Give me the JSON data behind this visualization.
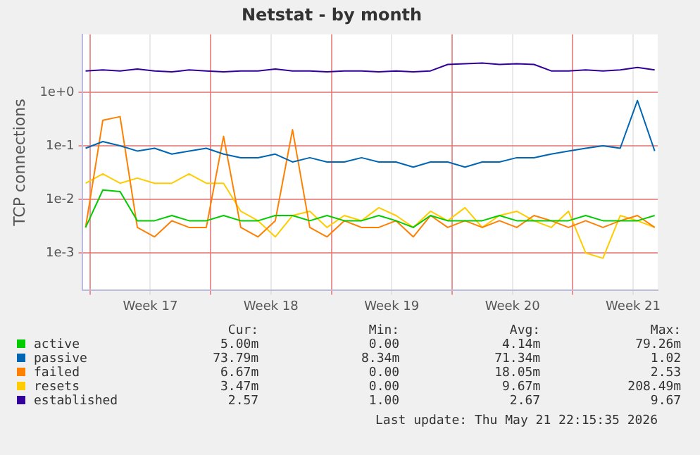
{
  "chart_data": {
    "type": "line",
    "title": "Netstat - by month",
    "ylabel": "TCP connections",
    "log": "y",
    "grid": true,
    "legend": "bottom",
    "marker": "none",
    "line_style": "solid",
    "x": [
      "2026-04-18T18:00",
      "2026-04-19T18:00",
      "2026-04-20T18:00",
      "2026-04-21T18:00",
      "2026-04-22T18:00",
      "2026-04-23T18:00",
      "2026-04-24T18:00",
      "2026-04-25T18:00",
      "2026-04-26T18:00",
      "2026-04-27T18:00",
      "2026-04-28T18:00",
      "2026-04-29T18:00",
      "2026-04-30T18:00",
      "2026-05-01T18:00",
      "2026-05-02T18:00",
      "2026-05-03T18:00",
      "2026-05-04T18:00",
      "2026-05-05T18:00",
      "2026-05-06T18:00",
      "2026-05-07T18:00",
      "2026-05-08T18:00",
      "2026-05-09T18:00",
      "2026-05-10T18:00",
      "2026-05-11T18:00",
      "2026-05-12T18:00",
      "2026-05-13T18:00",
      "2026-05-14T18:00",
      "2026-05-15T18:00",
      "2026-05-16T18:00",
      "2026-05-17T18:00",
      "2026-05-18T18:00",
      "2026-05-19T18:00",
      "2026-05-20T18:00",
      "2026-05-21T18:00"
    ],
    "xlim": [
      "2026-04-18T14:00",
      "2026-05-21T22:15"
    ],
    "xticks": [
      {
        "value": "2026-04-19T00:00",
        "label": null
      },
      {
        "value": "2026-04-22T12:00",
        "label": "Week 17"
      },
      {
        "value": "2026-04-26T00:00",
        "label": null
      },
      {
        "value": "2026-04-29T12:00",
        "label": "Week 18"
      },
      {
        "value": "2026-05-03T00:00",
        "label": null
      },
      {
        "value": "2026-05-06T12:00",
        "label": "Week 19"
      },
      {
        "value": "2026-05-10T00:00",
        "label": null
      },
      {
        "value": "2026-05-13T12:00",
        "label": "Week 20"
      },
      {
        "value": "2026-05-17T00:00",
        "label": null
      },
      {
        "value": "2026-05-20T12:00",
        "label": "Week 21"
      }
    ],
    "ylim": [
      0.0002,
      12
    ],
    "yticks": [
      {
        "value": 0.001,
        "label": "1e-3"
      },
      {
        "value": 0.01,
        "label": "1e-2"
      },
      {
        "value": 0.1,
        "label": "1e-1"
      },
      {
        "value": 1,
        "label": "1e+0"
      }
    ],
    "series": [
      {
        "name": "active",
        "color": "#00cc00",
        "values": [
          0.003,
          0.015,
          0.014,
          0.004,
          0.004,
          0.005,
          0.004,
          0.004,
          0.005,
          0.004,
          0.004,
          0.005,
          0.005,
          0.004,
          0.005,
          0.004,
          0.004,
          0.005,
          0.004,
          0.003,
          0.005,
          0.004,
          0.004,
          0.004,
          0.005,
          0.004,
          0.004,
          0.004,
          0.004,
          0.005,
          0.004,
          0.004,
          0.004,
          0.005
        ]
      },
      {
        "name": "passive",
        "color": "#0066b3",
        "values": [
          0.09,
          0.12,
          0.1,
          0.08,
          0.09,
          0.07,
          0.08,
          0.09,
          0.07,
          0.06,
          0.06,
          0.07,
          0.05,
          0.06,
          0.05,
          0.05,
          0.06,
          0.05,
          0.05,
          0.04,
          0.05,
          0.05,
          0.04,
          0.05,
          0.05,
          0.06,
          0.06,
          0.07,
          0.08,
          0.09,
          0.1,
          0.09,
          0.7,
          0.08
        ]
      },
      {
        "name": "failed",
        "color": "#ff8000",
        "values": [
          0.003,
          0.3,
          0.35,
          0.003,
          0.002,
          0.004,
          0.003,
          0.003,
          0.15,
          0.003,
          0.002,
          0.004,
          0.2,
          0.003,
          0.002,
          0.004,
          0.003,
          0.003,
          0.004,
          0.002,
          0.005,
          0.003,
          0.004,
          0.003,
          0.004,
          0.003,
          0.005,
          0.004,
          0.003,
          0.004,
          0.003,
          0.004,
          0.005,
          0.003
        ]
      },
      {
        "name": "resets",
        "color": "#ffcc00",
        "values": [
          0.02,
          0.03,
          0.02,
          0.025,
          0.02,
          0.02,
          0.03,
          0.02,
          0.02,
          0.006,
          0.004,
          0.002,
          0.005,
          0.006,
          0.003,
          0.005,
          0.004,
          0.007,
          0.005,
          0.003,
          0.006,
          0.004,
          0.007,
          0.003,
          0.005,
          0.006,
          0.004,
          0.003,
          0.006,
          0.001,
          0.0008,
          0.005,
          0.004,
          0.003
        ]
      },
      {
        "name": "established",
        "color": "#330099",
        "values": [
          2.5,
          2.6,
          2.5,
          2.7,
          2.5,
          2.4,
          2.6,
          2.5,
          2.4,
          2.5,
          2.5,
          2.7,
          2.5,
          2.5,
          2.4,
          2.5,
          2.5,
          2.4,
          2.5,
          2.4,
          2.5,
          3.3,
          3.4,
          3.5,
          3.3,
          3.4,
          3.3,
          2.5,
          2.5,
          2.6,
          2.5,
          2.6,
          2.9,
          2.6
        ]
      }
    ],
    "annotations": [
      "Cur:",
      "Min:",
      "Avg:",
      "Max:",
      "5.00m",
      "0.00",
      "4.14m",
      "79.26m",
      "73.79m",
      "8.34m",
      "71.34m",
      "1.02",
      "6.67m",
      "0.00",
      "18.05m",
      "2.53",
      "3.47m",
      "0.00",
      "9.67m",
      "208.49m",
      "2.57",
      "1.00",
      "2.67",
      "9.67",
      "Last update: Thu May 21 22:15:35 2026"
    ]
  }
}
